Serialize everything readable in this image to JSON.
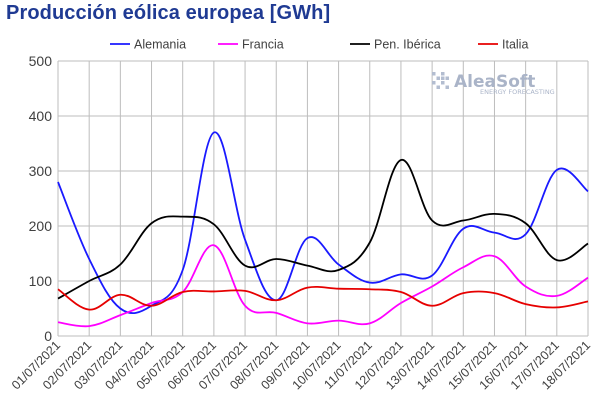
{
  "chart_data": {
    "type": "line",
    "title": "Producción eólica europea [GWh]",
    "xlabel": "",
    "ylabel": "",
    "ylim": [
      0,
      500
    ],
    "yticks": [
      0,
      100,
      200,
      300,
      400,
      500
    ],
    "grid": true,
    "legend_position": "top",
    "categories": [
      "01/07/2021",
      "02/07/2021",
      "03/07/2021",
      "04/07/2021",
      "05/07/2021",
      "06/07/2021",
      "07/07/2021",
      "08/07/2021",
      "09/07/2021",
      "10/07/2021",
      "11/07/2021",
      "12/07/2021",
      "13/07/2021",
      "14/07/2021",
      "15/07/2021",
      "16/07/2021",
      "17/07/2021",
      "18/07/2021"
    ],
    "series": [
      {
        "name": "Alemania",
        "color": "#1a1aff",
        "values": [
          280,
          140,
          50,
          55,
          120,
          370,
          175,
          65,
          178,
          130,
          97,
          112,
          110,
          195,
          188,
          185,
          302,
          263
        ]
      },
      {
        "name": "Francia",
        "color": "#ff00ff",
        "values": [
          25,
          18,
          38,
          60,
          80,
          165,
          55,
          42,
          23,
          28,
          23,
          60,
          90,
          125,
          145,
          90,
          73,
          106
        ]
      },
      {
        "name": "Pen. Ibérica",
        "color": "#000000",
        "values": [
          68,
          100,
          130,
          205,
          217,
          203,
          128,
          140,
          128,
          120,
          170,
          320,
          210,
          210,
          222,
          205,
          138,
          168
        ]
      },
      {
        "name": "Italia",
        "color": "#e60000",
        "values": [
          85,
          48,
          75,
          55,
          80,
          81,
          82,
          65,
          88,
          86,
          85,
          80,
          55,
          78,
          78,
          58,
          52,
          63
        ]
      }
    ]
  },
  "logo": {
    "main": "AleaSoft",
    "sub": "ENERGY FORECASTING"
  }
}
